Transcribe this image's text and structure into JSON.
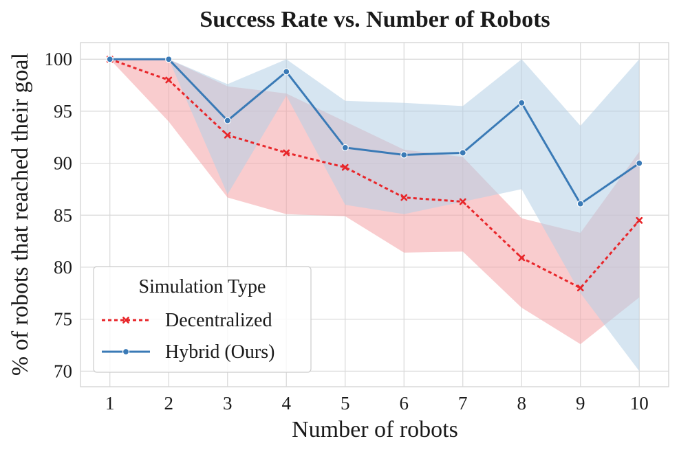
{
  "chart_data": {
    "type": "line",
    "title": "Success Rate vs. Number of Robots",
    "xlabel": "Number of robots",
    "ylabel": "% of robots that reached their goal",
    "x": [
      1,
      2,
      3,
      4,
      5,
      6,
      7,
      8,
      9,
      10
    ],
    "xlim": [
      0.5,
      10.5
    ],
    "ylim": [
      68.5,
      101.6
    ],
    "yticks": [
      70,
      75,
      80,
      85,
      90,
      95,
      100
    ],
    "grid": true,
    "legend": {
      "title": "Simulation Type",
      "position": "bottom-left"
    },
    "series": [
      {
        "name": "Decentralized",
        "color": "#e8262a",
        "band_color": "#f4a3a6",
        "line_style": "dotted",
        "marker": "x",
        "values": [
          100,
          98,
          92.7,
          91,
          89.6,
          86.7,
          86.3,
          80.9,
          78,
          84.5
        ],
        "lower": [
          100,
          94,
          86.7,
          85.1,
          84.9,
          81.4,
          81.5,
          76.1,
          72.6,
          77.1
        ],
        "upper": [
          100,
          100,
          97.4,
          96.7,
          94,
          91.3,
          90.6,
          84.7,
          83.3,
          91.1
        ]
      },
      {
        "name": "Hybrid (Ours)",
        "color": "#3a7ab6",
        "band_color": "#b5cfe6",
        "line_style": "solid",
        "marker": "o",
        "values": [
          100,
          100,
          94.1,
          98.8,
          91.5,
          90.8,
          91,
          95.8,
          86.1,
          90
        ],
        "lower": [
          100,
          100,
          87,
          96.5,
          86,
          85.1,
          86.3,
          87.5,
          77.5,
          70
        ],
        "upper": [
          100,
          100,
          97.6,
          100,
          96,
          95.8,
          95.5,
          100,
          93.6,
          100
        ]
      }
    ]
  }
}
